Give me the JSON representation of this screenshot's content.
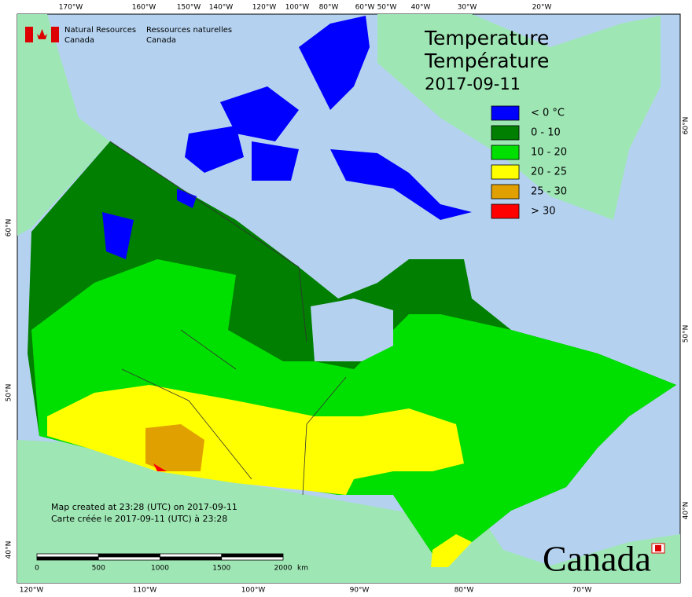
{
  "header": {
    "org_en": [
      "Natural Resources",
      "Canada"
    ],
    "org_fr": [
      "Ressources naturelles",
      "Canada"
    ]
  },
  "title": [
    "Temperature",
    "Température",
    "2017-09-11"
  ],
  "legend": [
    {
      "label": "< 0 °C",
      "color": "#0000ff"
    },
    {
      "label": "0 - 10",
      "color": "#007f00"
    },
    {
      "label": "10 - 20",
      "color": "#00e000"
    },
    {
      "label": "20 - 25",
      "color": "#ffff00"
    },
    {
      "label": "25 - 30",
      "color": "#e0a000"
    },
    {
      "label": "> 30",
      "color": "#ff0000"
    }
  ],
  "top_longitudes": [
    "170°W",
    "160°W",
    "150°W",
    "140°W",
    "120°W",
    "100°W",
    "80°W",
    "60°W",
    "50°W",
    "40°W",
    "30°W",
    "20°W"
  ],
  "bottom_longitudes": [
    "120°W",
    "110°W",
    "100°W",
    "90°W",
    "80°W",
    "70°W"
  ],
  "left_latitudes": [
    "60°N",
    "50°N",
    "40°N"
  ],
  "right_latitudes": [
    "60°N",
    "50°N",
    "40°N"
  ],
  "footer": [
    "Map created at 23:28 (UTC) on 2017-09-11",
    "Carte créée le 2017-09-11 (UTC) à 23:28"
  ],
  "scale": {
    "ticks": [
      0,
      500,
      1000,
      1500,
      2000
    ],
    "unit": "km"
  },
  "wordmark": "Canada"
}
